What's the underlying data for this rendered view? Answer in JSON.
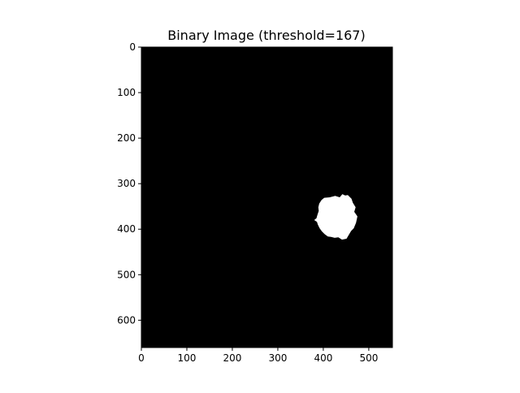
{
  "chart_data": {
    "type": "heatmap",
    "title": "Binary Image (threshold=167)",
    "xlabel": "",
    "ylabel": "",
    "xlim": [
      0,
      552
    ],
    "ylim": [
      660,
      0
    ],
    "y_axis_inverted": true,
    "grid": false,
    "colormap": "gray",
    "x_ticks": [
      0,
      100,
      200,
      300,
      400,
      500
    ],
    "y_ticks": [
      0,
      100,
      200,
      300,
      400,
      500,
      600
    ],
    "background_value": 0,
    "foreground_value": 1,
    "foreground_blob": {
      "description": "single white blob on black background",
      "outline": [
        [
          396,
          336
        ],
        [
          402,
          331
        ],
        [
          414,
          330
        ],
        [
          426,
          327
        ],
        [
          436,
          330
        ],
        [
          442,
          323
        ],
        [
          448,
          326
        ],
        [
          454,
          325
        ],
        [
          462,
          333
        ],
        [
          465,
          342
        ],
        [
          471,
          352
        ],
        [
          468,
          362
        ],
        [
          475,
          372
        ],
        [
          472,
          386
        ],
        [
          467,
          398
        ],
        [
          461,
          404
        ],
        [
          457,
          411
        ],
        [
          451,
          421
        ],
        [
          441,
          423
        ],
        [
          433,
          418
        ],
        [
          425,
          419
        ],
        [
          417,
          417
        ],
        [
          410,
          416
        ],
        [
          403,
          411
        ],
        [
          397,
          405
        ],
        [
          392,
          398
        ],
        [
          388,
          390
        ],
        [
          386,
          384
        ],
        [
          380,
          380
        ],
        [
          385,
          376
        ],
        [
          387,
          369
        ],
        [
          390,
          360
        ],
        [
          389,
          352
        ],
        [
          391,
          344
        ]
      ]
    }
  }
}
